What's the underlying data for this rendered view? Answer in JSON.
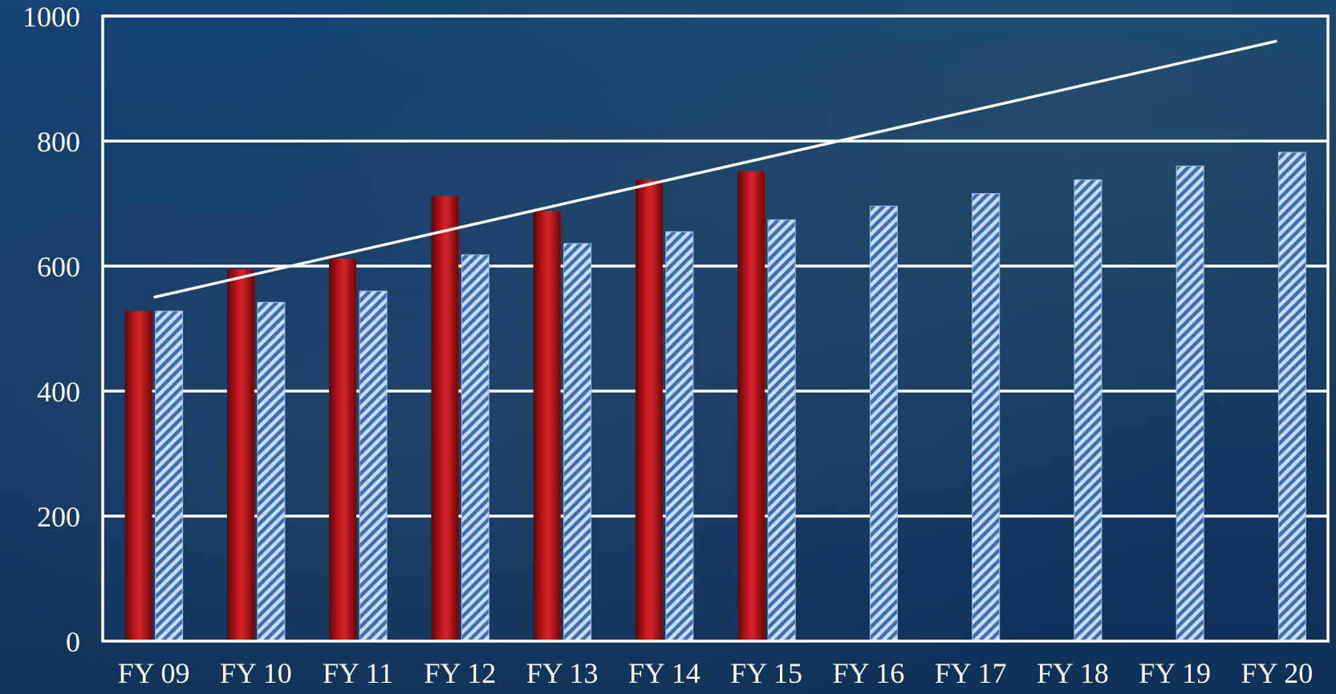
{
  "chart_data": {
    "type": "bar",
    "categories": [
      "FY 09",
      "FY 10",
      "FY 11",
      "FY 12",
      "FY 13",
      "FY 14",
      "FY 15",
      "FY 16",
      "FY 17",
      "FY 18",
      "FY 19",
      "FY 20"
    ],
    "series": [
      {
        "values": [
          528,
          595,
          612,
          712,
          688,
          738,
          752,
          null,
          null,
          null,
          null,
          null
        ],
        "style": "solid",
        "color": "#9e0c10"
      },
      {
        "values": [
          528,
          542,
          560,
          618,
          636,
          655,
          674,
          696,
          716,
          738,
          760,
          782
        ],
        "style": "hatched",
        "color": "#7aa6dc"
      }
    ],
    "trendline": {
      "from": {
        "x": "FY 09",
        "y": 550
      },
      "to": {
        "x": "FY 20",
        "y": 960
      },
      "color": "#ffffff"
    },
    "ylim": [
      0,
      1000
    ],
    "yticks": [
      0,
      200,
      400,
      600,
      800,
      1000
    ],
    "title": "",
    "xlabel": "",
    "ylabel": "",
    "grid": true,
    "legend": "none",
    "colors": {
      "background": "#133a63",
      "axis": "#ffffff",
      "grid": "#ffffff"
    }
  }
}
